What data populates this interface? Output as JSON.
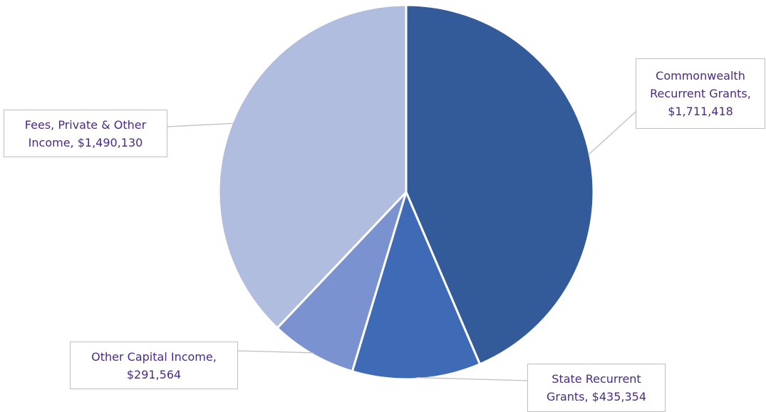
{
  "chart_data": {
    "type": "pie",
    "start_angle_deg": 0,
    "direction": "clockwise",
    "slices": [
      {
        "category": "Commonwealth Recurrent Grants",
        "value": 1711418,
        "value_label": "$1,711,418",
        "color": "#335a99",
        "label_lines": [
          "Commonwealth",
          "Recurrent Grants,",
          "$1,711,418"
        ]
      },
      {
        "category": "State Recurrent Grants",
        "value": 435354,
        "value_label": "$435,354",
        "color": "#3f6bb6",
        "label_lines": [
          "State Recurrent",
          "Grants,  $435,354"
        ]
      },
      {
        "category": "Other Capital Income",
        "value": 291564,
        "value_label": "$291,564",
        "color": "#7a92cf",
        "label_lines": [
          "Other Capital Income,",
          "$291,564"
        ]
      },
      {
        "category": "Fees, Private & Other Income",
        "value": 1490130,
        "value_label": "$1,490,130",
        "color": "#b1bddf",
        "label_lines": [
          "Fees, Private & Other",
          "Income,  $1,490,130"
        ]
      }
    ],
    "slice_border_color": "#ffffff",
    "label_text_color": "#4b2a86",
    "label_border_color": "#bfbfbf",
    "leader_line_color": "#bfbfbf",
    "legend": "none"
  }
}
